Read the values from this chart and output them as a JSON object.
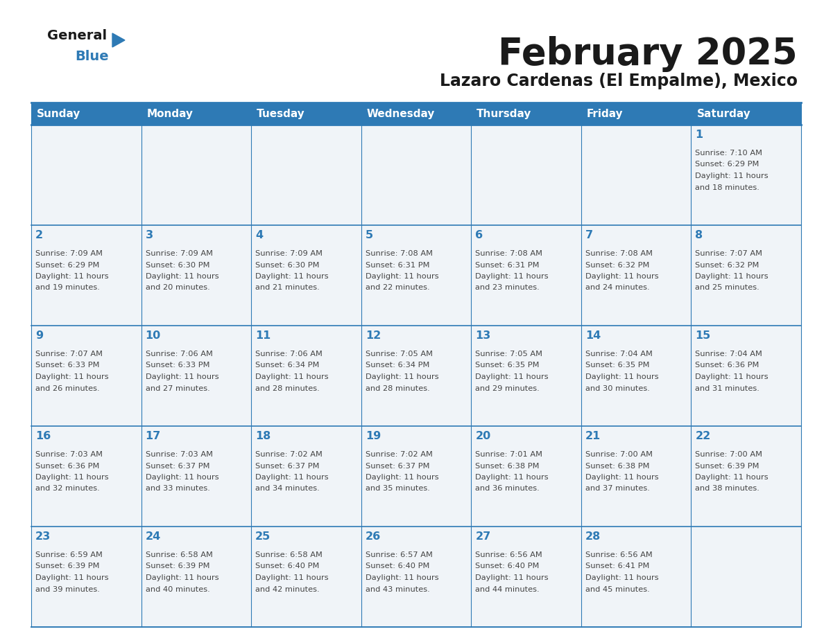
{
  "title": "February 2025",
  "subtitle": "Lazaro Cardenas (El Empalme), Mexico",
  "days_of_week": [
    "Sunday",
    "Monday",
    "Tuesday",
    "Wednesday",
    "Thursday",
    "Friday",
    "Saturday"
  ],
  "header_bg": "#2e7ab5",
  "header_text": "#ffffff",
  "cell_bg": "#f0f4f8",
  "border_color": "#2e7ab5",
  "day_number_color": "#2e7ab5",
  "info_text_color": "#444444",
  "title_color": "#1a1a1a",
  "calendar_data": [
    [
      null,
      null,
      null,
      null,
      null,
      null,
      {
        "day": 1,
        "sunrise": "7:10 AM",
        "sunset": "6:29 PM",
        "dl1": "Daylight: 11 hours",
        "dl2": "and 18 minutes."
      }
    ],
    [
      {
        "day": 2,
        "sunrise": "7:09 AM",
        "sunset": "6:29 PM",
        "dl1": "Daylight: 11 hours",
        "dl2": "and 19 minutes."
      },
      {
        "day": 3,
        "sunrise": "7:09 AM",
        "sunset": "6:30 PM",
        "dl1": "Daylight: 11 hours",
        "dl2": "and 20 minutes."
      },
      {
        "day": 4,
        "sunrise": "7:09 AM",
        "sunset": "6:30 PM",
        "dl1": "Daylight: 11 hours",
        "dl2": "and 21 minutes."
      },
      {
        "day": 5,
        "sunrise": "7:08 AM",
        "sunset": "6:31 PM",
        "dl1": "Daylight: 11 hours",
        "dl2": "and 22 minutes."
      },
      {
        "day": 6,
        "sunrise": "7:08 AM",
        "sunset": "6:31 PM",
        "dl1": "Daylight: 11 hours",
        "dl2": "and 23 minutes."
      },
      {
        "day": 7,
        "sunrise": "7:08 AM",
        "sunset": "6:32 PM",
        "dl1": "Daylight: 11 hours",
        "dl2": "and 24 minutes."
      },
      {
        "day": 8,
        "sunrise": "7:07 AM",
        "sunset": "6:32 PM",
        "dl1": "Daylight: 11 hours",
        "dl2": "and 25 minutes."
      }
    ],
    [
      {
        "day": 9,
        "sunrise": "7:07 AM",
        "sunset": "6:33 PM",
        "dl1": "Daylight: 11 hours",
        "dl2": "and 26 minutes."
      },
      {
        "day": 10,
        "sunrise": "7:06 AM",
        "sunset": "6:33 PM",
        "dl1": "Daylight: 11 hours",
        "dl2": "and 27 minutes."
      },
      {
        "day": 11,
        "sunrise": "7:06 AM",
        "sunset": "6:34 PM",
        "dl1": "Daylight: 11 hours",
        "dl2": "and 28 minutes."
      },
      {
        "day": 12,
        "sunrise": "7:05 AM",
        "sunset": "6:34 PM",
        "dl1": "Daylight: 11 hours",
        "dl2": "and 28 minutes."
      },
      {
        "day": 13,
        "sunrise": "7:05 AM",
        "sunset": "6:35 PM",
        "dl1": "Daylight: 11 hours",
        "dl2": "and 29 minutes."
      },
      {
        "day": 14,
        "sunrise": "7:04 AM",
        "sunset": "6:35 PM",
        "dl1": "Daylight: 11 hours",
        "dl2": "and 30 minutes."
      },
      {
        "day": 15,
        "sunrise": "7:04 AM",
        "sunset": "6:36 PM",
        "dl1": "Daylight: 11 hours",
        "dl2": "and 31 minutes."
      }
    ],
    [
      {
        "day": 16,
        "sunrise": "7:03 AM",
        "sunset": "6:36 PM",
        "dl1": "Daylight: 11 hours",
        "dl2": "and 32 minutes."
      },
      {
        "day": 17,
        "sunrise": "7:03 AM",
        "sunset": "6:37 PM",
        "dl1": "Daylight: 11 hours",
        "dl2": "and 33 minutes."
      },
      {
        "day": 18,
        "sunrise": "7:02 AM",
        "sunset": "6:37 PM",
        "dl1": "Daylight: 11 hours",
        "dl2": "and 34 minutes."
      },
      {
        "day": 19,
        "sunrise": "7:02 AM",
        "sunset": "6:37 PM",
        "dl1": "Daylight: 11 hours",
        "dl2": "and 35 minutes."
      },
      {
        "day": 20,
        "sunrise": "7:01 AM",
        "sunset": "6:38 PM",
        "dl1": "Daylight: 11 hours",
        "dl2": "and 36 minutes."
      },
      {
        "day": 21,
        "sunrise": "7:00 AM",
        "sunset": "6:38 PM",
        "dl1": "Daylight: 11 hours",
        "dl2": "and 37 minutes."
      },
      {
        "day": 22,
        "sunrise": "7:00 AM",
        "sunset": "6:39 PM",
        "dl1": "Daylight: 11 hours",
        "dl2": "and 38 minutes."
      }
    ],
    [
      {
        "day": 23,
        "sunrise": "6:59 AM",
        "sunset": "6:39 PM",
        "dl1": "Daylight: 11 hours",
        "dl2": "and 39 minutes."
      },
      {
        "day": 24,
        "sunrise": "6:58 AM",
        "sunset": "6:39 PM",
        "dl1": "Daylight: 11 hours",
        "dl2": "and 40 minutes."
      },
      {
        "day": 25,
        "sunrise": "6:58 AM",
        "sunset": "6:40 PM",
        "dl1": "Daylight: 11 hours",
        "dl2": "and 42 minutes."
      },
      {
        "day": 26,
        "sunrise": "6:57 AM",
        "sunset": "6:40 PM",
        "dl1": "Daylight: 11 hours",
        "dl2": "and 43 minutes."
      },
      {
        "day": 27,
        "sunrise": "6:56 AM",
        "sunset": "6:40 PM",
        "dl1": "Daylight: 11 hours",
        "dl2": "and 44 minutes."
      },
      {
        "day": 28,
        "sunrise": "6:56 AM",
        "sunset": "6:41 PM",
        "dl1": "Daylight: 11 hours",
        "dl2": "and 45 minutes."
      },
      null
    ]
  ],
  "logo_triangle_color": "#2e7ab5"
}
